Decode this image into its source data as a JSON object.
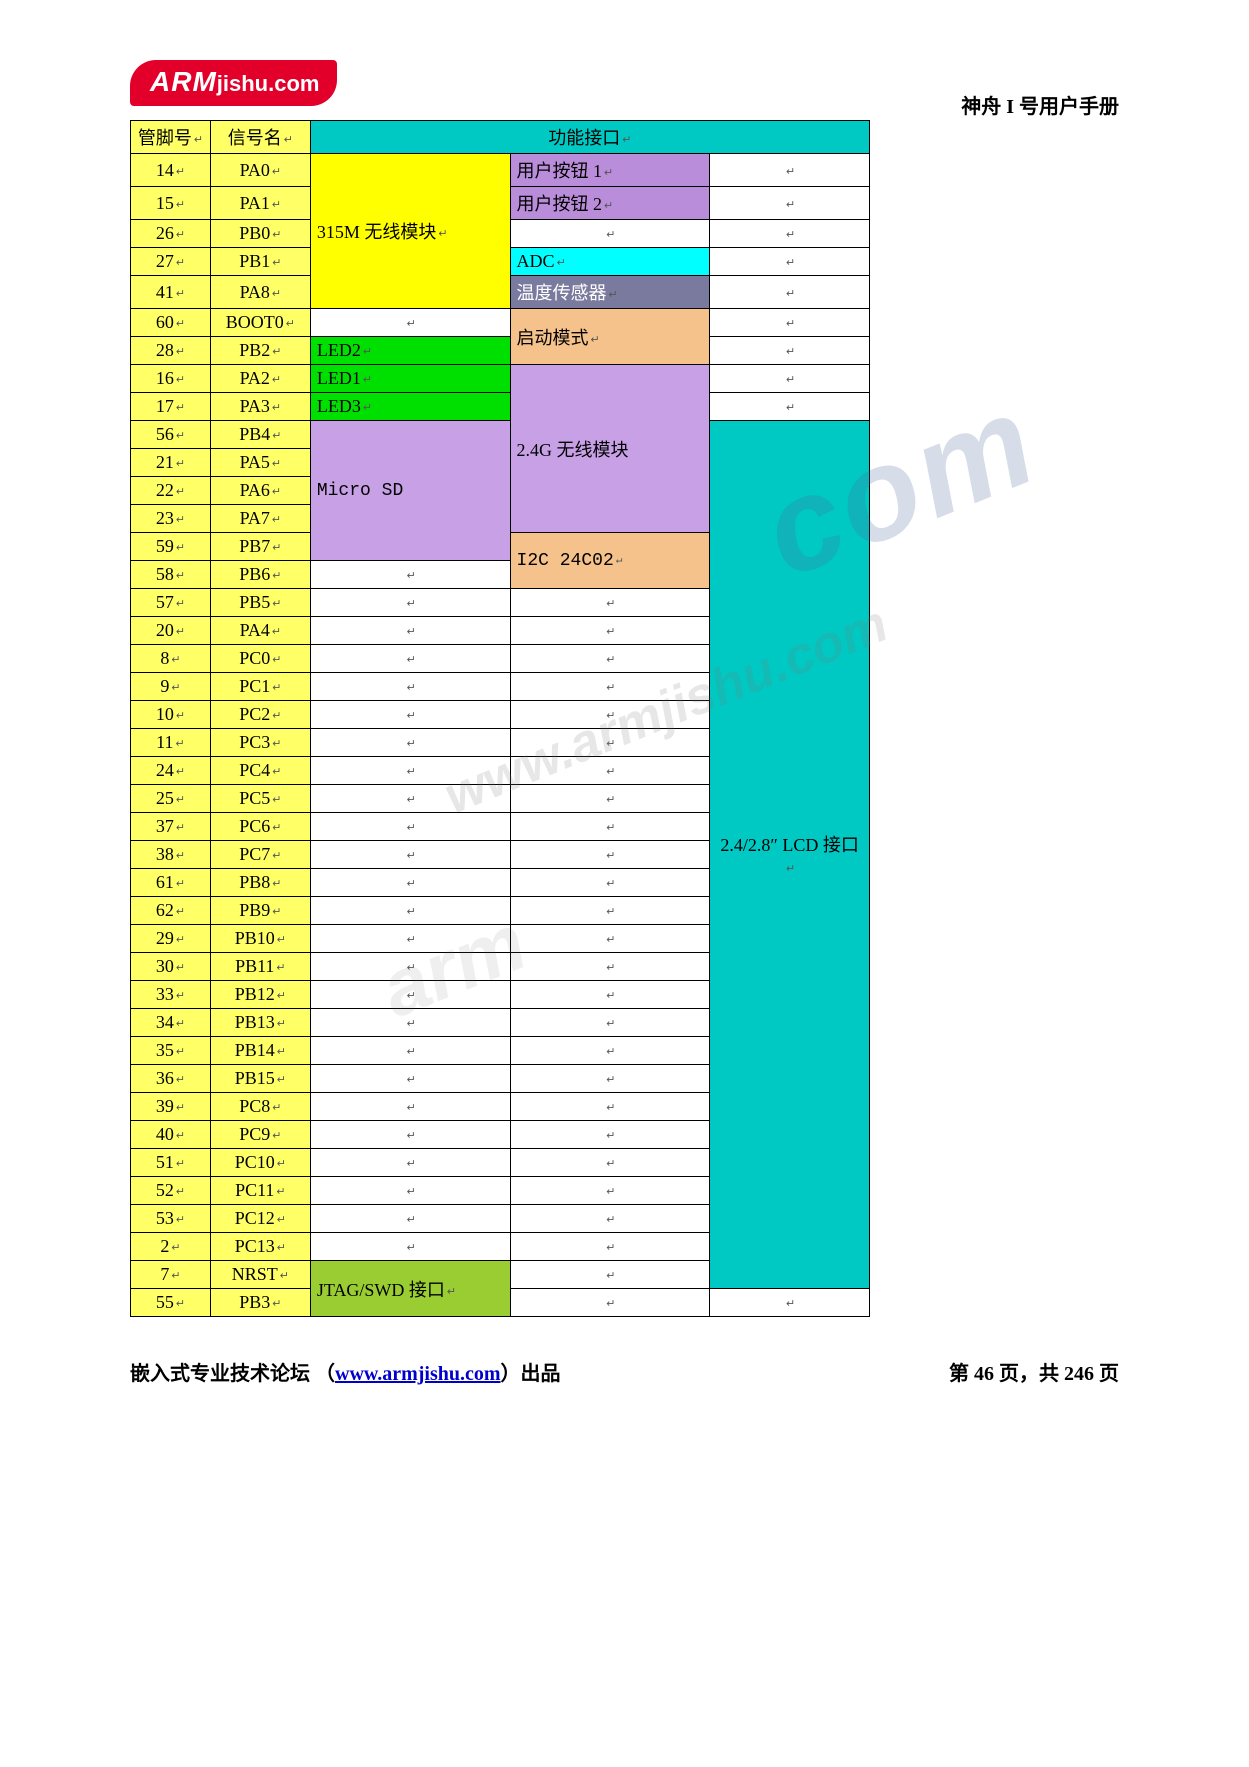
{
  "logo": {
    "text_bold": "ARM",
    "text_rest": "jishu.com"
  },
  "header_right": "神舟 I 号用户手册",
  "colors": {
    "header_bg": "#00c9c3",
    "pin_bg": "#ffff66",
    "yellow": "#ffff00",
    "purple": "#b98dd9",
    "cyan": "#00ffff",
    "slate": "#7a7a9e",
    "orange": "#f6c28b",
    "green": "#00e000",
    "lilac": "#c8a0e6",
    "olive": "#9acd32",
    "teal": "#00c9c3",
    "white": "#ffffff"
  },
  "columns": {
    "pin": "管脚号",
    "sig": "信号名",
    "func": "功能接口"
  },
  "blocks": {
    "m315": "315M 无线模块",
    "btn1": "用户按钮 1",
    "btn2": "用户按钮 2",
    "adc": "ADC",
    "temp": "温度传感器",
    "boot": "启动模式",
    "led2": "LED2",
    "led1": "LED1",
    "led3": "LED3",
    "g24": "2.4G 无线模块",
    "msd": "Micro SD",
    "i2c": "I2C 24C02",
    "lcd": "2.4/2.8″ LCD 接口",
    "jtag": "JTAG/SWD 接口"
  },
  "rows": [
    {
      "pin": "14",
      "sig": "PA0"
    },
    {
      "pin": "15",
      "sig": "PA1"
    },
    {
      "pin": "26",
      "sig": "PB0"
    },
    {
      "pin": "27",
      "sig": "PB1"
    },
    {
      "pin": "41",
      "sig": "PA8"
    },
    {
      "pin": "60",
      "sig": "BOOT0"
    },
    {
      "pin": "28",
      "sig": "PB2"
    },
    {
      "pin": "16",
      "sig": "PA2"
    },
    {
      "pin": "17",
      "sig": "PA3"
    },
    {
      "pin": "56",
      "sig": "PB4"
    },
    {
      "pin": "21",
      "sig": "PA5"
    },
    {
      "pin": "22",
      "sig": "PA6"
    },
    {
      "pin": "23",
      "sig": "PA7"
    },
    {
      "pin": "59",
      "sig": "PB7"
    },
    {
      "pin": "58",
      "sig": "PB6"
    },
    {
      "pin": "57",
      "sig": "PB5"
    },
    {
      "pin": "20",
      "sig": "PA4"
    },
    {
      "pin": "8",
      "sig": "PC0"
    },
    {
      "pin": "9",
      "sig": "PC1"
    },
    {
      "pin": "10",
      "sig": "PC2"
    },
    {
      "pin": "11",
      "sig": "PC3"
    },
    {
      "pin": "24",
      "sig": "PC4"
    },
    {
      "pin": "25",
      "sig": "PC5"
    },
    {
      "pin": "37",
      "sig": "PC6"
    },
    {
      "pin": "38",
      "sig": "PC7"
    },
    {
      "pin": "61",
      "sig": "PB8"
    },
    {
      "pin": "62",
      "sig": "PB9"
    },
    {
      "pin": "29",
      "sig": "PB10"
    },
    {
      "pin": "30",
      "sig": "PB11"
    },
    {
      "pin": "33",
      "sig": "PB12"
    },
    {
      "pin": "34",
      "sig": "PB13"
    },
    {
      "pin": "35",
      "sig": "PB14"
    },
    {
      "pin": "36",
      "sig": "PB15"
    },
    {
      "pin": "39",
      "sig": "PC8"
    },
    {
      "pin": "40",
      "sig": "PC9"
    },
    {
      "pin": "51",
      "sig": "PC10"
    },
    {
      "pin": "52",
      "sig": "PC11"
    },
    {
      "pin": "53",
      "sig": "PC12"
    },
    {
      "pin": "2",
      "sig": "PC13"
    },
    {
      "pin": "7",
      "sig": "NRST"
    },
    {
      "pin": "55",
      "sig": "PB3"
    }
  ],
  "footer": {
    "left_prefix": "嵌入式专业技术论坛  （",
    "link_text": "www.armjishu.com",
    "link_href": "http://www.armjishu.com",
    "left_suffix": "）出品",
    "right": "第 46 页，共 246 页"
  },
  "watermarks": {
    "wm1": "www.armjishu.com",
    "wm2": "com",
    "wm3": "arm"
  }
}
